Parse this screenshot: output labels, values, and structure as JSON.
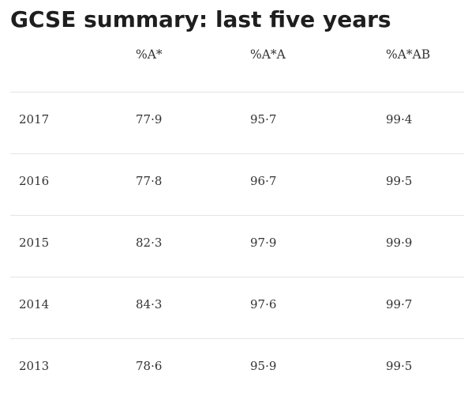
{
  "title": "GCSE summary: last five years",
  "table": {
    "headers": [
      "",
      "%A*",
      "%A*A",
      "%A*AB"
    ],
    "rows": [
      [
        "2017",
        "77·9",
        "95·7",
        "99·4"
      ],
      [
        "2016",
        "77·8",
        "96·7",
        "99·5"
      ],
      [
        "2015",
        "82·3",
        "97·9",
        "99·9"
      ],
      [
        "2014",
        "84·3",
        "97·6",
        "99·7"
      ],
      [
        "2013",
        "78·6",
        "95·9",
        "99·5"
      ]
    ]
  }
}
